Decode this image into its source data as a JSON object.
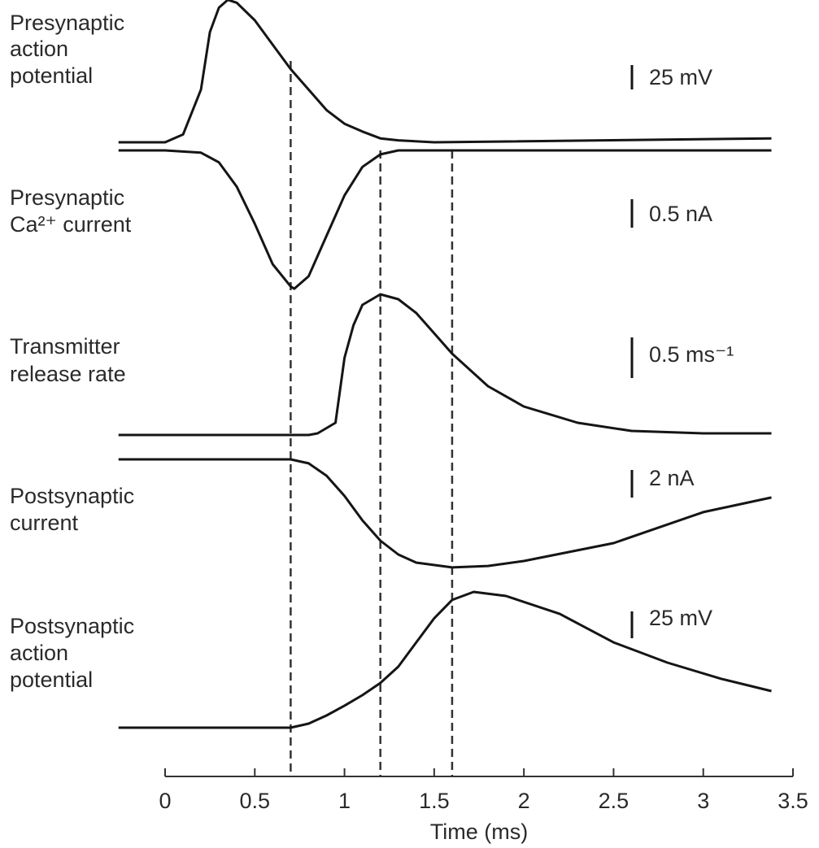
{
  "chart_data": {
    "type": "line",
    "xlabel": "Time (ms)",
    "xlim": [
      0,
      3.5
    ],
    "xticks": [
      0,
      0.5,
      1,
      1.5,
      2,
      2.5,
      3,
      3.5
    ],
    "markers": [
      0.7,
      1.2,
      1.6
    ],
    "color": "#151515",
    "series": [
      {
        "name": [
          "Presynaptic",
          "action",
          "potential"
        ],
        "scale_bar": {
          "value": 25,
          "label": "25 mV"
        },
        "x": [
          -0.26,
          0,
          0.1,
          0.2,
          0.25,
          0.3,
          0.35,
          0.4,
          0.5,
          0.6,
          0.7,
          0.8,
          0.9,
          1.0,
          1.1,
          1.2,
          1.3,
          1.5,
          3.38
        ],
        "values": [
          0,
          0,
          8,
          54,
          113,
          138,
          146,
          143,
          125,
          100,
          75,
          54,
          33,
          19,
          11,
          4,
          2,
          0,
          4
        ]
      },
      {
        "name": [
          "Presynaptic",
          "Ca²⁺ current"
        ],
        "scale_bar": {
          "value": 0.5,
          "label": "0.5 nA"
        },
        "x": [
          -0.26,
          0,
          0.2,
          0.3,
          0.4,
          0.5,
          0.6,
          0.7,
          0.72,
          0.8,
          0.9,
          1.0,
          1.1,
          1.2,
          1.3,
          3.38
        ],
        "values": [
          0,
          0,
          -0.04,
          -0.21,
          -0.64,
          -1.29,
          -2.0,
          -2.39,
          -2.43,
          -2.21,
          -1.5,
          -0.79,
          -0.29,
          -0.07,
          0,
          0
        ]
      },
      {
        "name": [
          "Transmitter",
          "release rate"
        ],
        "scale_bar": {
          "value": 0.5,
          "label": "0.5 ms⁻¹"
        },
        "x": [
          -0.26,
          0.8,
          0.85,
          0.95,
          1.0,
          1.05,
          1.1,
          1.2,
          1.3,
          1.4,
          1.5,
          1.6,
          1.8,
          2.0,
          2.3,
          2.6,
          3.0,
          3.38
        ],
        "values": [
          0,
          0,
          0.02,
          0.15,
          0.95,
          1.35,
          1.6,
          1.73,
          1.67,
          1.5,
          1.25,
          1.0,
          0.6,
          0.35,
          0.15,
          0.05,
          0.02,
          0.02
        ]
      },
      {
        "name": [
          "Postsynaptic",
          "current"
        ],
        "scale_bar": {
          "value": 2,
          "label": "2 nA"
        },
        "x": [
          -0.26,
          0.7,
          0.8,
          0.9,
          1.0,
          1.1,
          1.2,
          1.3,
          1.4,
          1.6,
          1.8,
          2.0,
          2.5,
          3.0,
          3.38
        ],
        "values": [
          0,
          0,
          -0.29,
          -1.18,
          -2.65,
          -4.41,
          -5.88,
          -6.88,
          -7.47,
          -7.82,
          -7.71,
          -7.35,
          -6.06,
          -3.82,
          -2.76
        ]
      },
      {
        "name": [
          "Postsynaptic",
          "action",
          "potential"
        ],
        "scale_bar": {
          "value": 25,
          "label": "25 mV"
        },
        "x": [
          -0.26,
          0.7,
          0.8,
          0.9,
          1.0,
          1.1,
          1.2,
          1.3,
          1.4,
          1.5,
          1.6,
          1.72,
          1.9,
          2.2,
          2.5,
          2.8,
          3.1,
          3.38
        ],
        "values": [
          0,
          0,
          3.8,
          11.4,
          20.5,
          30.3,
          41.7,
          56.8,
          79.5,
          102,
          119,
          126.5,
          122.7,
          106,
          79.5,
          60.6,
          45.5,
          34.1
        ]
      }
    ]
  }
}
